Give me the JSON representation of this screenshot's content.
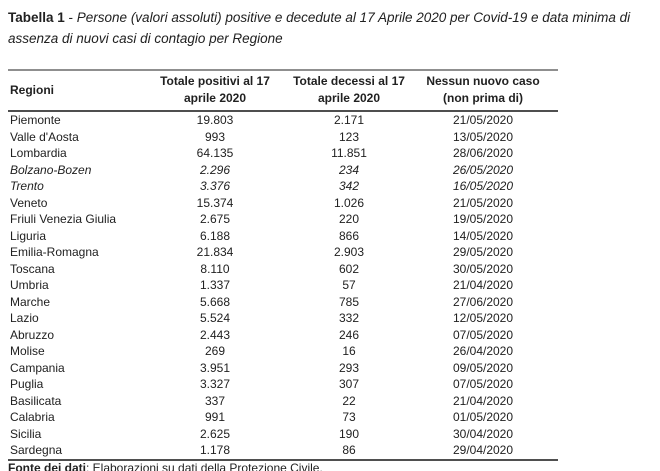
{
  "title": {
    "label": "Tabella 1",
    "separator": " - ",
    "text": "Persone (valori assoluti) positive e decedute al 17 Aprile 2020 per Covid-19 e data minima di assenza di nuovi casi di contagio per Regione"
  },
  "table": {
    "headers": [
      {
        "line1": "Regioni",
        "line2": ""
      },
      {
        "line1": "Totale positivi al 17",
        "line2": "aprile 2020"
      },
      {
        "line1": "Totale decessi al 17",
        "line2": "aprile 2020"
      },
      {
        "line1": "Nessun nuovo caso",
        "line2": "(non prima di)"
      }
    ],
    "rows": [
      {
        "region": "Piemonte",
        "positives": "19.803",
        "deaths": "2.171",
        "no_new_case": "21/05/2020",
        "emphasis": false
      },
      {
        "region": "Valle d'Aosta",
        "positives": "993",
        "deaths": "123",
        "no_new_case": "13/05/2020",
        "emphasis": false
      },
      {
        "region": "Lombardia",
        "positives": "64.135",
        "deaths": "11.851",
        "no_new_case": "28/06/2020",
        "emphasis": false
      },
      {
        "region": "Bolzano-Bozen",
        "positives": "2.296",
        "deaths": "234",
        "no_new_case": "26/05/2020",
        "emphasis": true
      },
      {
        "region": "Trento",
        "positives": "3.376",
        "deaths": "342",
        "no_new_case": "16/05/2020",
        "emphasis": true
      },
      {
        "region": "Veneto",
        "positives": "15.374",
        "deaths": "1.026",
        "no_new_case": "21/05/2020",
        "emphasis": false
      },
      {
        "region": "Friuli Venezia Giulia",
        "positives": "2.675",
        "deaths": "220",
        "no_new_case": "19/05/2020",
        "emphasis": false
      },
      {
        "region": "Liguria",
        "positives": "6.188",
        "deaths": "866",
        "no_new_case": "14/05/2020",
        "emphasis": false
      },
      {
        "region": "Emilia-Romagna",
        "positives": "21.834",
        "deaths": "2.903",
        "no_new_case": "29/05/2020",
        "emphasis": false
      },
      {
        "region": "Toscana",
        "positives": "8.110",
        "deaths": "602",
        "no_new_case": "30/05/2020",
        "emphasis": false
      },
      {
        "region": "Umbria",
        "positives": "1.337",
        "deaths": "57",
        "no_new_case": "21/04/2020",
        "emphasis": false
      },
      {
        "region": "Marche",
        "positives": "5.668",
        "deaths": "785",
        "no_new_case": "27/06/2020",
        "emphasis": false
      },
      {
        "region": "Lazio",
        "positives": "5.524",
        "deaths": "332",
        "no_new_case": "12/05/2020",
        "emphasis": false
      },
      {
        "region": "Abruzzo",
        "positives": "2.443",
        "deaths": "246",
        "no_new_case": "07/05/2020",
        "emphasis": false
      },
      {
        "region": "Molise",
        "positives": "269",
        "deaths": "16",
        "no_new_case": "26/04/2020",
        "emphasis": false
      },
      {
        "region": "Campania",
        "positives": "3.951",
        "deaths": "293",
        "no_new_case": "09/05/2020",
        "emphasis": false
      },
      {
        "region": "Puglia",
        "positives": "3.327",
        "deaths": "307",
        "no_new_case": "07/05/2020",
        "emphasis": false
      },
      {
        "region": "Basilicata",
        "positives": "337",
        "deaths": "22",
        "no_new_case": "21/04/2020",
        "emphasis": false
      },
      {
        "region": "Calabria",
        "positives": "991",
        "deaths": "73",
        "no_new_case": "01/05/2020",
        "emphasis": false
      },
      {
        "region": "Sicilia",
        "positives": "2.625",
        "deaths": "190",
        "no_new_case": "30/04/2020",
        "emphasis": false
      },
      {
        "region": "Sardegna",
        "positives": "1.178",
        "deaths": "86",
        "no_new_case": "29/04/2020",
        "emphasis": false
      }
    ]
  },
  "footer": {
    "label": "Fonte dei dati",
    "text": ": Elaborazioni su dati della Protezione Civile."
  },
  "colors": {
    "text": "#212121",
    "border_top": "#8f8f8f",
    "border_dark": "#4f4f4f",
    "background": "#ffffff"
  }
}
